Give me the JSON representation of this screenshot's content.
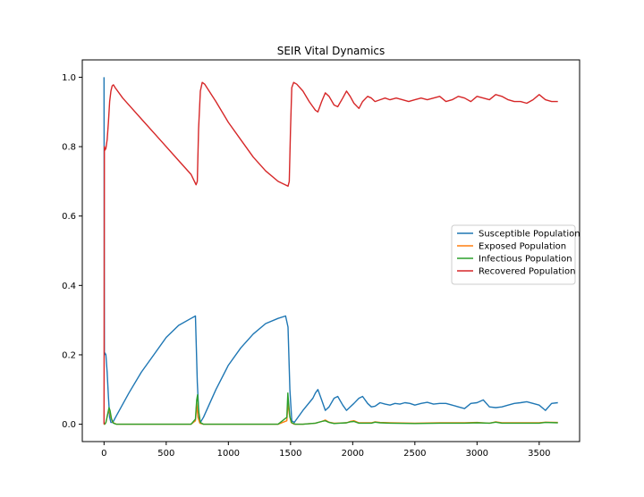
{
  "chart_data": {
    "type": "line",
    "title": "SEIR Vital Dynamics",
    "xlabel": "",
    "ylabel": "",
    "xlim": [
      -175,
      3825
    ],
    "ylim": [
      -0.05,
      1.05
    ],
    "x_ticks": [
      0,
      500,
      1000,
      1500,
      2000,
      2500,
      3000,
      3500
    ],
    "y_ticks": [
      0.0,
      0.2,
      0.4,
      0.6,
      0.8,
      1.0
    ],
    "grid": false,
    "legend_position": "center-right",
    "series": [
      {
        "name": "Susceptible Population",
        "color": "#1f77b4",
        "x": [
          0,
          3,
          8,
          15,
          25,
          35,
          45,
          55,
          70,
          100,
          200,
          300,
          400,
          500,
          600,
          700,
          735,
          750,
          765,
          775,
          800,
          900,
          1000,
          1100,
          1200,
          1300,
          1400,
          1460,
          1480,
          1495,
          1510,
          1530,
          1600,
          1680,
          1700,
          1720,
          1750,
          1780,
          1810,
          1850,
          1880,
          1920,
          1950,
          1980,
          2010,
          2050,
          2080,
          2120,
          2150,
          2180,
          2220,
          2260,
          2300,
          2340,
          2380,
          2420,
          2460,
          2500,
          2550,
          2600,
          2650,
          2700,
          2750,
          2800,
          2850,
          2900,
          2950,
          3000,
          3050,
          3100,
          3150,
          3200,
          3250,
          3300,
          3350,
          3400,
          3450,
          3500,
          3550,
          3600,
          3650
        ],
        "y": [
          1.0,
          0.2,
          0.205,
          0.2,
          0.15,
          0.08,
          0.02,
          0.005,
          0.005,
          0.025,
          0.09,
          0.15,
          0.2,
          0.25,
          0.285,
          0.305,
          0.312,
          0.12,
          0.01,
          0.005,
          0.02,
          0.1,
          0.17,
          0.22,
          0.26,
          0.29,
          0.305,
          0.312,
          0.28,
          0.1,
          0.01,
          0.005,
          0.04,
          0.075,
          0.09,
          0.1,
          0.07,
          0.04,
          0.05,
          0.075,
          0.08,
          0.055,
          0.04,
          0.05,
          0.06,
          0.075,
          0.08,
          0.06,
          0.05,
          0.052,
          0.062,
          0.058,
          0.055,
          0.06,
          0.058,
          0.062,
          0.06,
          0.055,
          0.06,
          0.063,
          0.058,
          0.06,
          0.06,
          0.055,
          0.05,
          0.045,
          0.06,
          0.062,
          0.07,
          0.05,
          0.048,
          0.05,
          0.055,
          0.06,
          0.062,
          0.065,
          0.06,
          0.055,
          0.04,
          0.06,
          0.062
        ]
      },
      {
        "name": "Exposed Population",
        "color": "#ff7f0e",
        "x": [
          0,
          5,
          15,
          30,
          40,
          55,
          70,
          100,
          300,
          500,
          700,
          735,
          745,
          755,
          770,
          800,
          1000,
          1200,
          1400,
          1470,
          1480,
          1490,
          1505,
          1530,
          1600,
          1700,
          1750,
          1780,
          1810,
          1850,
          1950,
          1980,
          2010,
          2050,
          2150,
          2180,
          2220,
          2300,
          2500,
          2700,
          2900,
          3000,
          3100,
          3150,
          3200,
          3300,
          3500,
          3550,
          3650
        ],
        "y": [
          0.0,
          0.0,
          0.005,
          0.03,
          0.045,
          0.02,
          0.005,
          0.0,
          0.0,
          0.0,
          0.0,
          0.01,
          0.06,
          0.02,
          0.003,
          0.0,
          0.0,
          0.0,
          0.0,
          0.01,
          0.065,
          0.03,
          0.005,
          0.0,
          0.0,
          0.003,
          0.008,
          0.012,
          0.006,
          0.003,
          0.004,
          0.008,
          0.01,
          0.004,
          0.004,
          0.007,
          0.005,
          0.004,
          0.003,
          0.004,
          0.004,
          0.005,
          0.003,
          0.007,
          0.004,
          0.004,
          0.004,
          0.006,
          0.005
        ]
      },
      {
        "name": "Infectious Population",
        "color": "#2ca02c",
        "x": [
          0,
          5,
          15,
          30,
          40,
          48,
          60,
          75,
          100,
          300,
          500,
          700,
          735,
          745,
          752,
          760,
          775,
          800,
          1000,
          1200,
          1400,
          1470,
          1478,
          1485,
          1495,
          1510,
          1540,
          1600,
          1700,
          1750,
          1780,
          1810,
          1850,
          1950,
          1980,
          2010,
          2050,
          2150,
          2180,
          2220,
          2300,
          2500,
          2700,
          2900,
          3000,
          3100,
          3150,
          3200,
          3300,
          3500,
          3550,
          3650
        ],
        "y": [
          0.0,
          0.0,
          0.005,
          0.03,
          0.048,
          0.04,
          0.015,
          0.003,
          0.0,
          0.0,
          0.0,
          0.0,
          0.015,
          0.07,
          0.085,
          0.04,
          0.005,
          0.0,
          0.0,
          0.0,
          0.0,
          0.02,
          0.09,
          0.06,
          0.02,
          0.004,
          0.0,
          0.0,
          0.003,
          0.008,
          0.01,
          0.005,
          0.002,
          0.004,
          0.007,
          0.008,
          0.003,
          0.003,
          0.006,
          0.004,
          0.003,
          0.002,
          0.003,
          0.003,
          0.004,
          0.003,
          0.006,
          0.003,
          0.003,
          0.003,
          0.005,
          0.004
        ]
      },
      {
        "name": "Recovered Population",
        "color": "#d62728",
        "x": [
          0,
          3,
          8,
          15,
          25,
          35,
          45,
          55,
          65,
          75,
          90,
          150,
          300,
          450,
          600,
          700,
          740,
          750,
          760,
          775,
          790,
          810,
          900,
          1000,
          1100,
          1200,
          1300,
          1400,
          1480,
          1490,
          1500,
          1510,
          1525,
          1550,
          1600,
          1650,
          1680,
          1700,
          1720,
          1750,
          1780,
          1810,
          1850,
          1880,
          1920,
          1950,
          1980,
          2010,
          2050,
          2080,
          2120,
          2150,
          2180,
          2220,
          2260,
          2300,
          2350,
          2400,
          2450,
          2500,
          2550,
          2600,
          2650,
          2700,
          2750,
          2800,
          2850,
          2900,
          2950,
          3000,
          3050,
          3100,
          3150,
          3200,
          3250,
          3300,
          3350,
          3400,
          3450,
          3500,
          3550,
          3600,
          3650
        ],
        "y": [
          0.0,
          0.8,
          0.79,
          0.795,
          0.82,
          0.87,
          0.93,
          0.96,
          0.975,
          0.978,
          0.97,
          0.94,
          0.88,
          0.82,
          0.76,
          0.72,
          0.69,
          0.7,
          0.85,
          0.96,
          0.985,
          0.98,
          0.93,
          0.87,
          0.82,
          0.77,
          0.73,
          0.7,
          0.686,
          0.7,
          0.85,
          0.97,
          0.985,
          0.98,
          0.96,
          0.93,
          0.915,
          0.905,
          0.9,
          0.93,
          0.955,
          0.945,
          0.92,
          0.915,
          0.94,
          0.96,
          0.945,
          0.925,
          0.91,
          0.93,
          0.945,
          0.94,
          0.93,
          0.935,
          0.94,
          0.935,
          0.94,
          0.935,
          0.93,
          0.935,
          0.94,
          0.935,
          0.94,
          0.945,
          0.93,
          0.935,
          0.945,
          0.94,
          0.93,
          0.945,
          0.94,
          0.935,
          0.95,
          0.945,
          0.935,
          0.93,
          0.93,
          0.925,
          0.935,
          0.95,
          0.935,
          0.93,
          0.93
        ]
      }
    ]
  }
}
